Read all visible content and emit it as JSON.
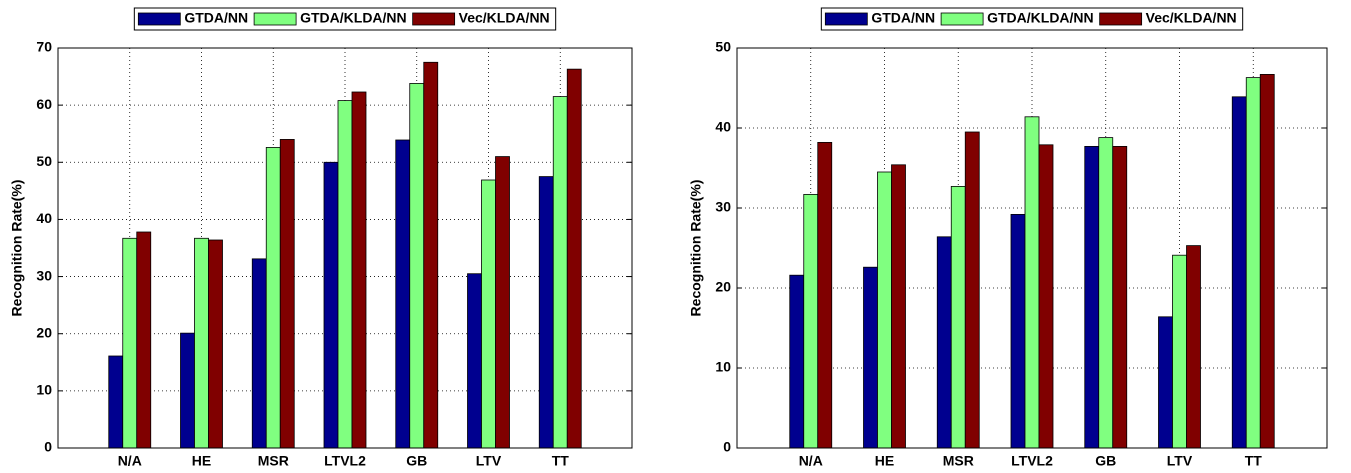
{
  "chart_data": [
    {
      "type": "bar",
      "ylabel": "Recognition Rate(%)",
      "categories": [
        "N/A",
        "HE",
        "MSR",
        "LTVL2",
        "GB",
        "LTV",
        "TT"
      ],
      "series": [
        {
          "name": "GTDA/NN",
          "color": "#00008f",
          "values": [
            16.1,
            20.1,
            33.1,
            50.0,
            53.9,
            30.5,
            47.5
          ]
        },
        {
          "name": "GTDA/KLDA/NN",
          "color": "#80ff80",
          "values": [
            36.7,
            36.7,
            52.6,
            60.8,
            63.8,
            46.9,
            61.5
          ]
        },
        {
          "name": "Vec/KLDA/NN",
          "color": "#800000",
          "values": [
            37.8,
            36.4,
            54.0,
            62.3,
            67.5,
            51.0,
            66.3
          ]
        }
      ],
      "ylim": [
        0,
        70
      ],
      "yticks": [
        0,
        10,
        20,
        30,
        40,
        50,
        60,
        70
      ],
      "grid": true,
      "legend": "top"
    },
    {
      "type": "bar",
      "ylabel": "Recognition Rate(%)",
      "categories": [
        "N/A",
        "HE",
        "MSR",
        "LTVL2",
        "GB",
        "LTV",
        "TT"
      ],
      "series": [
        {
          "name": "GTDA/NN",
          "color": "#00008f",
          "values": [
            21.6,
            22.6,
            26.4,
            29.2,
            37.7,
            16.4,
            43.9
          ]
        },
        {
          "name": "GTDA/KLDA/NN",
          "color": "#80ff80",
          "values": [
            31.7,
            34.5,
            32.7,
            41.4,
            38.8,
            24.1,
            46.3
          ]
        },
        {
          "name": "Vec/KLDA/NN",
          "color": "#800000",
          "values": [
            38.2,
            35.4,
            39.5,
            37.9,
            37.7,
            25.3,
            46.7
          ]
        }
      ],
      "ylim": [
        0,
        50
      ],
      "yticks": [
        0,
        10,
        20,
        30,
        40,
        50
      ],
      "grid": true,
      "legend": "top"
    }
  ]
}
